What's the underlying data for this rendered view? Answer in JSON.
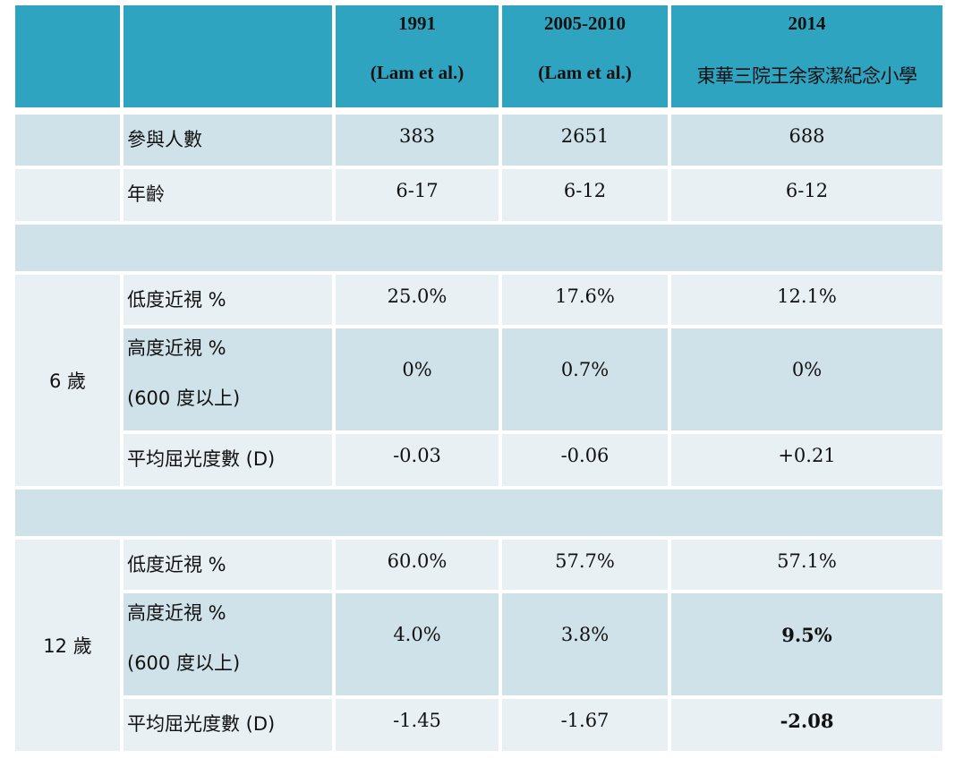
{
  "header": {
    "col1": {
      "line1": "1991",
      "line2": "(Lam et al.)"
    },
    "col2": {
      "line1": "2005-2010",
      "line2": "(Lam et al.)"
    },
    "col3": {
      "line1": "2014",
      "line2": "東華三院王余家潔紀念小學"
    }
  },
  "general": [
    {
      "label": "參與人數",
      "values": [
        "383",
        "2651",
        "688"
      ]
    },
    {
      "label": "年齡",
      "values": [
        "6-17",
        "6-12",
        "6-12"
      ]
    }
  ],
  "age6": {
    "group_label": "6 歲",
    "rows": [
      {
        "label": "低度近視  %",
        "values": [
          "25.0%",
          "17.6%",
          "12.1%"
        ]
      },
      {
        "label": "高度近視  %",
        "sublabel": "(600 度以上)",
        "values": [
          "0%",
          "0.7%",
          "0%"
        ]
      },
      {
        "label": "平均屈光度數  (D)",
        "values": [
          "-0.03",
          "-0.06",
          "+0.21"
        ]
      }
    ]
  },
  "age12": {
    "group_label": "12 歲",
    "rows": [
      {
        "label": "低度近視  %",
        "values": [
          "60.0%",
          "57.7%",
          "57.1%"
        ]
      },
      {
        "label": "高度近視  %",
        "sublabel": "(600 度以上)",
        "values": [
          "4.0%",
          "3.8%",
          "9.5%"
        ]
      },
      {
        "label": "平均屈光度數  (D)",
        "values": [
          "-1.45",
          "-1.67",
          "-2.08"
        ]
      }
    ]
  }
}
